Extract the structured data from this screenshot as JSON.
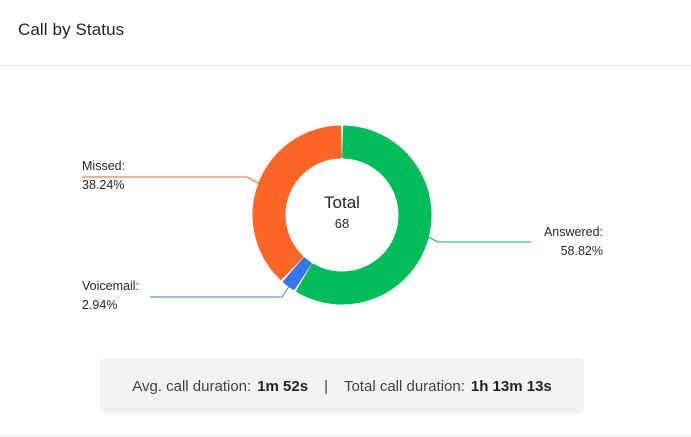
{
  "card": {
    "title": "Call by Status"
  },
  "chart_center": {
    "title": "Total",
    "value": "68"
  },
  "chart_data": {
    "type": "pie",
    "donut": true,
    "title": "",
    "slices": [
      {
        "name": "Answered",
        "value": 58.82,
        "label": "Answered:",
        "percent_label": "58.82%",
        "color": "#00bd5a"
      },
      {
        "name": "Voicemail",
        "value": 2.94,
        "label": "Voicemail:",
        "percent_label": "2.94%",
        "color": "#3478e6"
      },
      {
        "name": "Missed",
        "value": 38.24,
        "label": "Missed:",
        "percent_label": "38.24%",
        "color": "#ff6626"
      }
    ]
  },
  "summary": {
    "avg_label": "Avg. call duration:",
    "avg_value": "1m 52s",
    "separator": "|",
    "total_label": "Total call duration:",
    "total_value": "1h 13m 13s"
  }
}
